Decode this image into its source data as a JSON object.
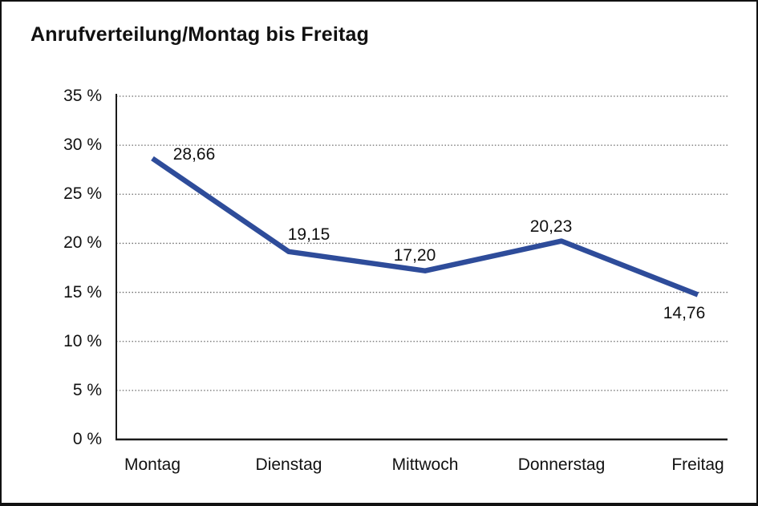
{
  "chart_data": {
    "type": "line",
    "title": "Anrufverteilung/Montag bis Freitag",
    "categories": [
      "Montag",
      "Dienstag",
      "Mittwoch",
      "Donnerstag",
      "Freitag"
    ],
    "series": [
      {
        "name": "Anrufverteilung",
        "values": [
          28.66,
          19.15,
          17.2,
          20.23,
          14.76
        ],
        "data_labels": [
          "28,66",
          "19,15",
          "17,20",
          "20,23",
          "14,76"
        ]
      }
    ],
    "xlabel": "",
    "ylabel": "",
    "ylim": [
      0,
      35
    ],
    "y_tick_step": 5,
    "y_tick_labels": [
      "35 %",
      "30 %",
      "25 %",
      "20 %",
      "15 %",
      "10 %",
      "5 %",
      "0 %"
    ],
    "grid": "horizontal-dotted",
    "legend": "none",
    "colors": {
      "line": "#2e4c9a",
      "axis": "#1a1a1a",
      "gridline": "#6b6b6b",
      "text": "#111111",
      "background": "#ffffff",
      "frame_border": "#111111"
    }
  }
}
